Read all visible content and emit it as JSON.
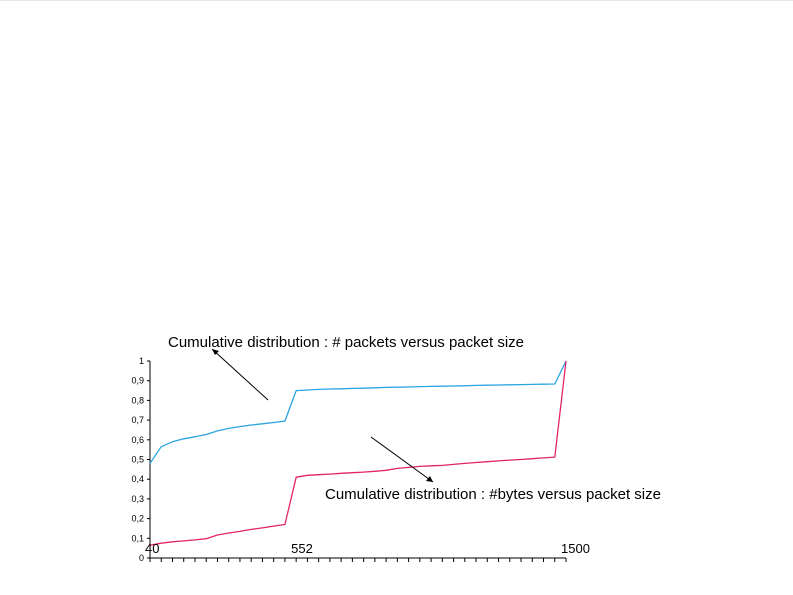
{
  "chart_data": {
    "type": "line",
    "title": "",
    "xlabel": "",
    "ylabel": "",
    "ylim": [
      0,
      1
    ],
    "yticks": [
      "0",
      "0,1",
      "0,2",
      "0,3",
      "0,4",
      "0,5",
      "0,6",
      "0,7",
      "0,8",
      "0,9",
      "1"
    ],
    "ytick_values": [
      0,
      0.1,
      0.2,
      0.3,
      0.4,
      0.5,
      0.6,
      0.7,
      0.8,
      0.9,
      1
    ],
    "xlim": [
      0,
      37
    ],
    "x_labels": [
      {
        "index": 0,
        "text": "40"
      },
      {
        "index": 13,
        "text": "552"
      },
      {
        "index": 37,
        "text": "1500"
      }
    ],
    "grid": false,
    "colors": {
      "packets": "#2aa5e0",
      "bytes": "#e2236b"
    },
    "series": [
      {
        "key": "packets",
        "values": [
          0.48,
          0.565,
          0.59,
          0.605,
          0.615,
          0.627,
          0.645,
          0.658,
          0.667,
          0.675,
          0.681,
          0.688,
          0.695,
          0.85,
          0.853,
          0.856,
          0.858,
          0.859,
          0.861,
          0.862,
          0.864,
          0.866,
          0.867,
          0.868,
          0.87,
          0.871,
          0.872,
          0.873,
          0.874,
          0.876,
          0.877,
          0.878,
          0.879,
          0.88,
          0.881,
          0.882,
          0.883,
          1.0
        ]
      },
      {
        "key": "bytes",
        "values": [
          0.065,
          0.075,
          0.082,
          0.087,
          0.092,
          0.098,
          0.117,
          0.127,
          0.135,
          0.145,
          0.153,
          0.162,
          0.17,
          0.41,
          0.42,
          0.423,
          0.426,
          0.43,
          0.433,
          0.436,
          0.44,
          0.445,
          0.455,
          0.46,
          0.465,
          0.468,
          0.47,
          0.475,
          0.48,
          0.485,
          0.489,
          0.493,
          0.497,
          0.5,
          0.504,
          0.508,
          0.512,
          1.0
        ]
      }
    ],
    "annotations": [
      {
        "target": "packets",
        "text": "Cumulative distribution : # packets versus packet size"
      },
      {
        "target": "bytes",
        "text": "Cumulative distribution : #bytes versus packet size"
      }
    ]
  }
}
